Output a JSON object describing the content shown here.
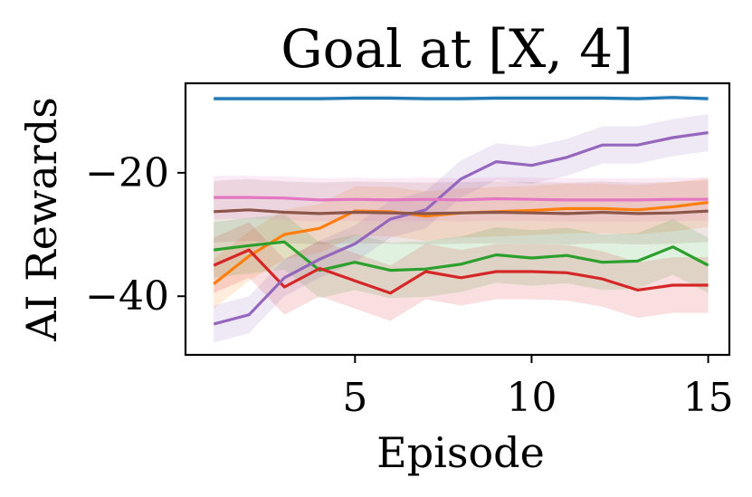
{
  "chart_data": {
    "type": "line",
    "title": "Goal at [X, 4]",
    "xlabel": "Episode",
    "ylabel": "AI Rewards",
    "xlim": [
      0.2,
      15.6
    ],
    "ylim": [
      -49.5,
      -5.5
    ],
    "xticks": [
      5,
      10,
      15
    ],
    "xtick_labels": [
      "5",
      "10",
      "15"
    ],
    "yticks": [
      -20,
      -40
    ],
    "ytick_labels": [
      "−20",
      "−40"
    ],
    "grid": false,
    "legend": "none",
    "x": [
      1,
      2,
      3,
      4,
      5,
      6,
      7,
      8,
      9,
      10,
      11,
      12,
      13,
      14,
      15
    ],
    "series": [
      {
        "color": "#1f77b4",
        "values": [
          -8.0,
          -8.0,
          -8.0,
          -8.0,
          -7.9,
          -7.9,
          -8.0,
          -8.0,
          -7.9,
          -7.9,
          -7.9,
          -7.9,
          -8.0,
          -7.8,
          -8.0
        ],
        "band": 0.4
      },
      {
        "color": "#ff7f0e",
        "values": [
          -38.0,
          -33.5,
          -30.0,
          -29.0,
          -26.2,
          -26.3,
          -27.0,
          -26.5,
          -26.3,
          -26.1,
          -25.8,
          -25.8,
          -26.0,
          -25.5,
          -24.8
        ],
        "band": 4.0
      },
      {
        "color": "#2ca02c",
        "values": [
          -32.5,
          -31.8,
          -31.2,
          -35.8,
          -34.5,
          -35.8,
          -35.6,
          -34.8,
          -33.3,
          -33.8,
          -33.4,
          -34.5,
          -34.3,
          -32.0,
          -35.0
        ],
        "band": 4.5
      },
      {
        "color": "#d62728",
        "values": [
          -35.0,
          -32.5,
          -38.5,
          -35.5,
          -37.5,
          -39.5,
          -36.0,
          -37.0,
          -36.0,
          -36.0,
          -36.2,
          -37.2,
          -39.0,
          -38.2,
          -38.2
        ],
        "band": 4.5
      },
      {
        "color": "#9467bd",
        "values": [
          -44.5,
          -43.0,
          -37.0,
          -34.0,
          -31.5,
          -27.5,
          -26.0,
          -21.0,
          -18.2,
          -18.8,
          -17.5,
          -15.5,
          -15.5,
          -14.3,
          -13.5
        ],
        "band": 3.0
      },
      {
        "color": "#8c564b",
        "values": [
          -26.3,
          -26.0,
          -26.4,
          -26.6,
          -26.4,
          -26.5,
          -26.6,
          -26.5,
          -26.4,
          -26.5,
          -26.6,
          -26.4,
          -26.6,
          -26.5,
          -26.2
        ],
        "band": 5.0
      },
      {
        "color": "#e377c2",
        "values": [
          -24.0,
          -24.0,
          -24.1,
          -24.4,
          -24.3,
          -24.4,
          -24.3,
          -24.4,
          -24.2,
          -24.3,
          -24.4,
          -24.4,
          -24.4,
          -24.3,
          -24.3
        ],
        "band": 3.5
      }
    ]
  }
}
